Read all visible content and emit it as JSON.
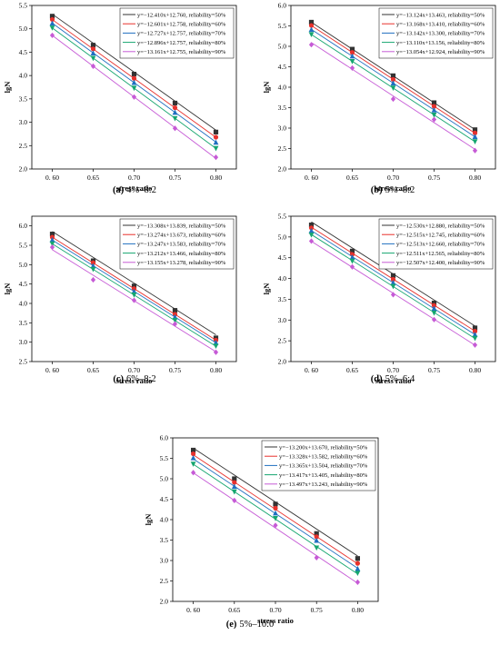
{
  "figure": {
    "series_colors": [
      "#333333",
      "#e8312c",
      "#1f6fc0",
      "#15a66f",
      "#c65ad6"
    ],
    "series_markers": [
      "square",
      "circle",
      "triangle-up",
      "triangle-down",
      "diamond"
    ]
  },
  "chart_data": [
    {
      "type": "scatter",
      "caption_letter": "(a)",
      "caption_text": "4%–8:2",
      "xlabel": "stress ratio",
      "ylabel": "lgN",
      "xlim": [
        0.575,
        0.825
      ],
      "ylim": [
        2.0,
        5.5
      ],
      "xticks": [
        "0. 60",
        "0.65",
        "0.70",
        "0.75",
        "0.80"
      ],
      "yticks": [
        "2.0",
        "2.5",
        "3.0",
        "3.5",
        "4.0",
        "4.5",
        "5.0",
        "5.5"
      ],
      "x": [
        0.6,
        0.65,
        0.7,
        0.75,
        0.8
      ],
      "legend_position": "top-right",
      "series": [
        {
          "legend": "y=−12.410x+12.760, reliability=50%",
          "slope": -12.41,
          "intercept": 12.76,
          "values": [
            5.27,
            4.65,
            4.03,
            3.41,
            2.79
          ]
        },
        {
          "legend": "y=−12.601x+12.758, reliability=60%",
          "slope": -12.601,
          "intercept": 12.758,
          "values": [
            5.2,
            4.57,
            3.94,
            3.31,
            2.68
          ]
        },
        {
          "legend": "y=−12.727x+12.757, reliability=70%",
          "slope": -12.727,
          "intercept": 12.757,
          "values": [
            5.12,
            4.48,
            3.85,
            3.21,
            2.57
          ]
        },
        {
          "legend": "y=−12.896x+12.757, reliability=80%",
          "slope": -12.896,
          "intercept": 12.757,
          "values": [
            5.02,
            4.37,
            3.73,
            3.08,
            2.44
          ]
        },
        {
          "legend": "y=−13.161x+12.755, reliability=90%",
          "slope": -13.161,
          "intercept": 12.755,
          "values": [
            4.86,
            4.2,
            3.54,
            2.87,
            2.25
          ]
        }
      ]
    },
    {
      "type": "scatter",
      "caption_letter": "(b)",
      "caption_text": "5%–8:2",
      "xlabel": "stress ratio",
      "ylabel": "lgN",
      "xlim": [
        0.575,
        0.825
      ],
      "ylim": [
        2.0,
        6.0
      ],
      "xticks": [
        "0. 60",
        "0.65",
        "0.70",
        "0.75",
        "0.80"
      ],
      "yticks": [
        "2.0",
        "2.5",
        "3.0",
        "3.5",
        "4.0",
        "4.5",
        "5.0",
        "5.5",
        "6.0"
      ],
      "x": [
        0.6,
        0.65,
        0.7,
        0.75,
        0.8
      ],
      "legend_position": "top-right",
      "series": [
        {
          "legend": "y=−13.124x+13.463, reliability=50%",
          "slope": -13.124,
          "intercept": 13.463,
          "values": [
            5.59,
            4.93,
            4.28,
            3.62,
            2.96
          ]
        },
        {
          "legend": "y=−13.168x+13.410, reliability=60%",
          "slope": -13.168,
          "intercept": 13.41,
          "values": [
            5.51,
            4.85,
            4.19,
            3.53,
            2.88
          ]
        },
        {
          "legend": "y=−13.142x+13.300, reliability=70%",
          "slope": -13.142,
          "intercept": 13.3,
          "values": [
            5.41,
            4.76,
            4.1,
            3.44,
            2.79
          ]
        },
        {
          "legend": "y=−13.110x+13.156, reliability=80%",
          "slope": -13.11,
          "intercept": 13.156,
          "values": [
            5.29,
            4.63,
            3.98,
            3.32,
            2.67
          ]
        },
        {
          "legend": "y=−13.054x+12.924, reliability=90%",
          "slope": -13.054,
          "intercept": 12.924,
          "values": [
            5.04,
            4.47,
            3.71,
            3.21,
            2.45
          ]
        }
      ]
    },
    {
      "type": "scatter",
      "caption_letter": "(c)",
      "caption_text": "6%–8:2",
      "xlabel": "stress ratio",
      "ylabel": "lgN",
      "xlim": [
        0.575,
        0.825
      ],
      "ylim": [
        2.5,
        6.25
      ],
      "xticks": [
        "0. 60",
        "0.65",
        "0.70",
        "0.75",
        "0.80"
      ],
      "yticks": [
        "2.5",
        "3.0",
        "3.5",
        "4.0",
        "4.5",
        "5.0",
        "5.5",
        "6.0"
      ],
      "x": [
        0.6,
        0.65,
        0.7,
        0.75,
        0.8
      ],
      "legend_position": "top-right",
      "series": [
        {
          "legend": "y=−13.308x+13.839, reliability=50%",
          "slope": -13.308,
          "intercept": 13.839,
          "values": [
            5.79,
            5.1,
            4.45,
            3.82,
            3.11
          ]
        },
        {
          "legend": "y=−13.274x+13.673, reliability=60%",
          "slope": -13.274,
          "intercept": 13.673,
          "values": [
            5.71,
            5.05,
            4.38,
            3.72,
            3.05
          ]
        },
        {
          "legend": "y=−13.247x+13.583, reliability=70%",
          "slope": -13.247,
          "intercept": 13.583,
          "values": [
            5.64,
            4.97,
            4.31,
            3.65,
            2.99
          ]
        },
        {
          "legend": "y=−13.212x+13.466, reliability=80%",
          "slope": -13.212,
          "intercept": 13.466,
          "values": [
            5.54,
            4.88,
            4.22,
            3.56,
            2.9
          ]
        },
        {
          "legend": "y=−13.155x+13.278, reliability=90%",
          "slope": -13.155,
          "intercept": 13.278,
          "values": [
            5.45,
            4.61,
            4.08,
            3.47,
            2.74
          ]
        }
      ]
    },
    {
      "type": "scatter",
      "caption_letter": "(d)",
      "caption_text": "5%–6:4",
      "xlabel": "stress ratio",
      "ylabel": "lgN",
      "xlim": [
        0.575,
        0.825
      ],
      "ylim": [
        2.0,
        5.5
      ],
      "xticks": [
        "0. 60",
        "0.65",
        "0.70",
        "0.75",
        "0.80"
      ],
      "yticks": [
        "2.0",
        "2.5",
        "3.0",
        "3.5",
        "4.0",
        "4.5",
        "5.0",
        "5.5"
      ],
      "x": [
        0.6,
        0.65,
        0.7,
        0.75,
        0.8
      ],
      "legend_position": "top-right",
      "series": [
        {
          "legend": "y=−12.530x+12.880, reliability=50%",
          "slope": -12.53,
          "intercept": 12.88,
          "values": [
            5.29,
            4.66,
            4.07,
            3.41,
            2.81
          ]
        },
        {
          "legend": "y=−12.515x+12.745, reliability=60%",
          "slope": -12.515,
          "intercept": 12.745,
          "values": [
            5.22,
            4.58,
            3.98,
            3.35,
            2.73
          ]
        },
        {
          "legend": "y=−12.513x+12.660, reliability=70%",
          "slope": -12.513,
          "intercept": 12.66,
          "values": [
            5.15,
            4.51,
            3.9,
            3.28,
            2.65
          ]
        },
        {
          "legend": "y=−12.511x+12.565, reliability=80%",
          "slope": -12.511,
          "intercept": 12.565,
          "values": [
            5.05,
            4.42,
            3.81,
            3.17,
            2.56
          ]
        },
        {
          "legend": "y=−12.507x+12.400, reliability=90%",
          "slope": -12.507,
          "intercept": 12.4,
          "values": [
            4.9,
            4.28,
            3.61,
            3.01,
            2.4
          ]
        }
      ]
    },
    {
      "type": "scatter",
      "caption_letter": "(e)",
      "caption_text": "5%–10:0",
      "xlabel": "stress ratio",
      "ylabel": "lgN",
      "xlim": [
        0.575,
        0.825
      ],
      "ylim": [
        2.0,
        6.0
      ],
      "xticks": [
        "0. 60",
        "0.65",
        "0.70",
        "0.75",
        "0.80"
      ],
      "yticks": [
        "2.0",
        "2.5",
        "3.0",
        "3.5",
        "4.0",
        "4.5",
        "5.0",
        "5.5",
        "6.0"
      ],
      "x": [
        0.6,
        0.65,
        0.7,
        0.75,
        0.8
      ],
      "legend_position": "top-right",
      "series": [
        {
          "legend": "y=−13.200x+13.670, reliability=50%",
          "slope": -13.2,
          "intercept": 13.67,
          "values": [
            5.7,
            5.0,
            4.38,
            3.66,
            3.05
          ]
        },
        {
          "legend": "y=−13.328x+13.582, reliability=60%",
          "slope": -13.328,
          "intercept": 13.582,
          "values": [
            5.61,
            4.91,
            4.28,
            3.58,
            2.93
          ]
        },
        {
          "legend": "y=−13.365x+13.504, reliability=70%",
          "slope": -13.365,
          "intercept": 13.504,
          "values": [
            5.51,
            4.81,
            4.16,
            3.49,
            2.8
          ]
        },
        {
          "legend": "y=−13.417x+13.405, reliability=80%",
          "slope": -13.417,
          "intercept": 13.405,
          "values": [
            5.36,
            4.68,
            4.03,
            3.31,
            2.69
          ]
        },
        {
          "legend": "y=−13.497x+13.243, reliability=90%",
          "slope": -13.497,
          "intercept": 13.243,
          "values": [
            5.15,
            4.47,
            3.86,
            3.07,
            2.47
          ]
        }
      ]
    }
  ]
}
